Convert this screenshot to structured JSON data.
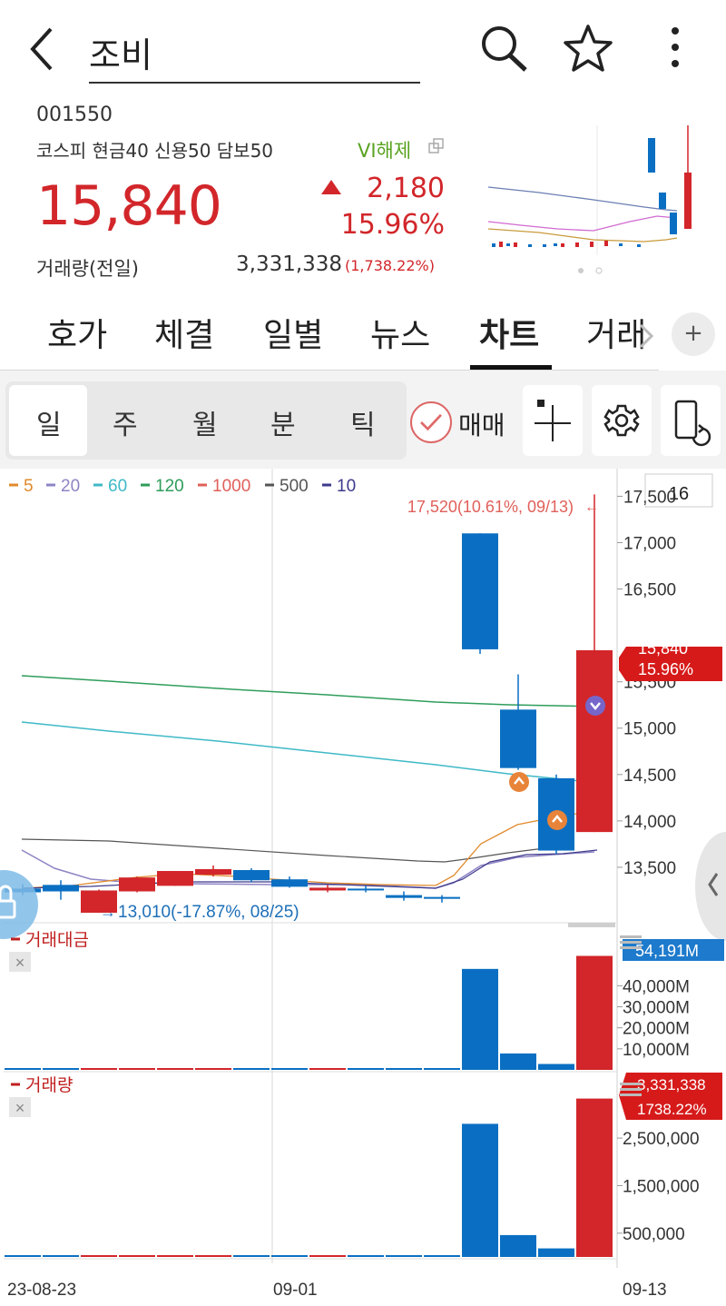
{
  "header": {
    "title": "조비",
    "icons": [
      "back-arrow-icon",
      "search-icon",
      "star-icon",
      "more-vertical-icon"
    ]
  },
  "quote": {
    "code": "001550",
    "market_info": "코스피 현금40 신용50 담보50",
    "vi_status": "VI해제",
    "price": "15,840",
    "change": "2,180",
    "change_pct": "15.96%",
    "volume_label": "거래량(전일)",
    "volume": "3,331,338",
    "volume_pct": "(1,738.22%)"
  },
  "tabs": [
    {
      "label": "호가"
    },
    {
      "label": "체결"
    },
    {
      "label": "일별"
    },
    {
      "label": "뉴스"
    },
    {
      "label": "차트",
      "active": true
    },
    {
      "label": "거래"
    }
  ],
  "plus_label": "+",
  "periods": [
    {
      "label": "일",
      "active": true
    },
    {
      "label": "주"
    },
    {
      "label": "월"
    },
    {
      "label": "분"
    },
    {
      "label": "틱"
    }
  ],
  "trade_label": "매매",
  "colors": {
    "up": "#d2262a",
    "down": "#0a6fc2",
    "ma5": "#e08a2c",
    "ma20": "#8e84c4",
    "ma60": "#3fb9c7",
    "ma120": "#2e9d5b",
    "ma1000": "#e0605a",
    "ma500": "#555555",
    "ma10": "#3d3a8c"
  },
  "chart_data": {
    "type": "candlestick",
    "legend": [
      {
        "label": "5",
        "color": "#e08a2c"
      },
      {
        "label": "20",
        "color": "#8e84c4"
      },
      {
        "label": "60",
        "color": "#3fb9c7"
      },
      {
        "label": "120",
        "color": "#2e9d5b"
      },
      {
        "label": "1000",
        "color": "#e0605a"
      },
      {
        "label": "500",
        "color": "#555555"
      },
      {
        "label": "10",
        "color": "#3d3a8c"
      }
    ],
    "period_count": "16",
    "price_ticks": [
      "17,500",
      "17,000",
      "16,500",
      "15,500",
      "15,000",
      "14,500",
      "14,000",
      "13,500"
    ],
    "price_ylim": [
      13000,
      17700
    ],
    "high_annotation": "17,520(10.61%, 09/13)",
    "low_annotation": "13,010(-17.87%, 08/25)",
    "current_price_label": "15,840",
    "current_pct_label": "15.96%",
    "candles": [
      {
        "o": 13270,
        "h": 13320,
        "c": 13230,
        "l": 13200
      },
      {
        "o": 13310,
        "h": 13360,
        "c": 13240,
        "l": 13150
      },
      {
        "o": 13010,
        "h": 13260,
        "c": 13250,
        "l": 13010
      },
      {
        "o": 13240,
        "h": 13400,
        "c": 13390,
        "l": 13230
      },
      {
        "o": 13300,
        "h": 13460,
        "c": 13460,
        "l": 13300
      },
      {
        "o": 13420,
        "h": 13520,
        "c": 13480,
        "l": 13400
      },
      {
        "o": 13470,
        "h": 13490,
        "c": 13360,
        "l": 13340
      },
      {
        "o": 13370,
        "h": 13400,
        "c": 13290,
        "l": 13280
      },
      {
        "o": 13250,
        "h": 13310,
        "c": 13280,
        "l": 13230
      },
      {
        "o": 13270,
        "h": 13300,
        "c": 13260,
        "l": 13230
      },
      {
        "o": 13200,
        "h": 13240,
        "c": 13170,
        "l": 13140
      },
      {
        "o": 13180,
        "h": 13200,
        "c": 13160,
        "l": 13120
      },
      {
        "o": 17100,
        "h": 17100,
        "c": 15850,
        "l": 15800
      },
      {
        "o": 15200,
        "h": 15580,
        "c": 14570,
        "l": 14550
      },
      {
        "o": 14460,
        "h": 14500,
        "c": 13680,
        "l": 13640
      },
      {
        "o": 13880,
        "h": 17520,
        "c": 15840,
        "l": 13880
      }
    ],
    "amount_label": "거래대금",
    "amount_ticks": [
      "40,000M",
      "30,000M",
      "20,000M",
      "10,000M"
    ],
    "amount_current": "54,191M",
    "amount_ylim": [
      0,
      57000
    ],
    "amounts": [
      100,
      100,
      100,
      100,
      100,
      100,
      100,
      100,
      100,
      100,
      100,
      100,
      48000,
      7800,
      2800,
      54191
    ],
    "volume_label": "거래량",
    "volume_ticks": [
      "2,500,000",
      "1,500,000",
      "500,000"
    ],
    "volume_current": "3,331,338",
    "volume_current_pct": "1738.22%",
    "volume_ylim": [
      0,
      3400000
    ],
    "volumes": [
      4000,
      6000,
      5000,
      4000,
      5000,
      4000,
      5000,
      4000,
      4000,
      5000,
      6000,
      5000,
      2800000,
      460000,
      180000,
      3331338
    ],
    "x_labels": [
      "23-08-23",
      "09-01",
      "09-13"
    ]
  }
}
